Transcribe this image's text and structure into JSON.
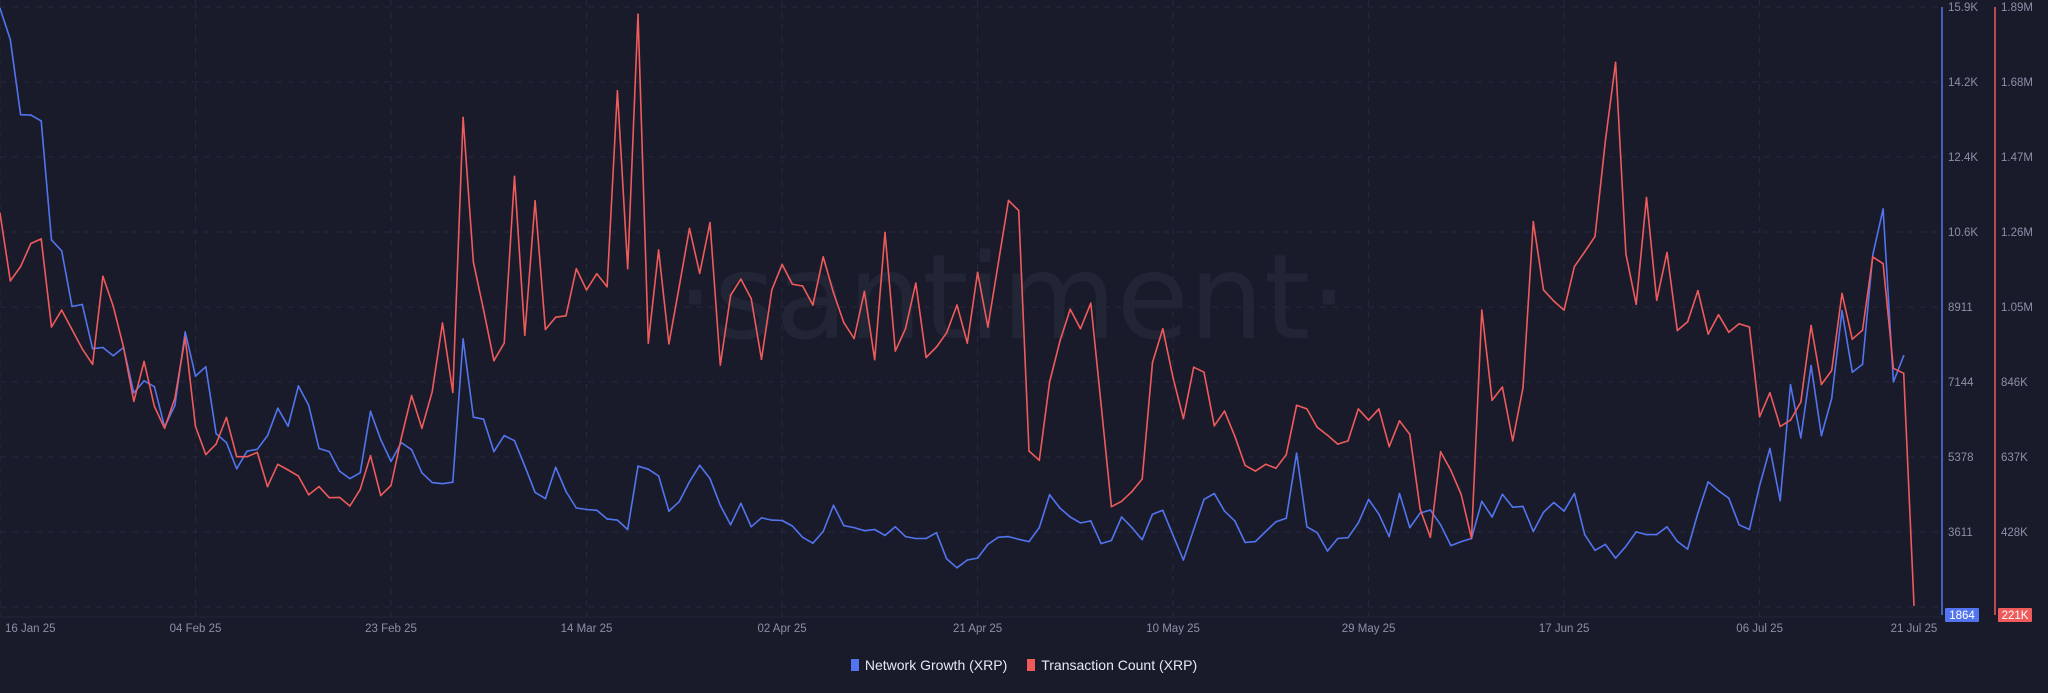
{
  "watermark": "·santiment·",
  "colors": {
    "background": "#191b2b",
    "network_growth": "#5274ee",
    "transaction_count": "#ef5b5b",
    "grid": "#262a3c",
    "tick_text": "#8b90a6"
  },
  "legend": [
    {
      "label": "Network Growth (XRP)",
      "color": "#5274ee"
    },
    {
      "label": "Transaction Count (XRP)",
      "color": "#ef5b5b"
    }
  ],
  "chart_data": {
    "type": "line",
    "legend_position": "bottom",
    "grid": true,
    "x_tick_labels": [
      "16 Jan 25",
      "04 Feb 25",
      "23 Feb 25",
      "14 Mar 25",
      "02 Apr 25",
      "21 Apr 25",
      "10 May 25",
      "29 May 25",
      "17 Jun 25",
      "06 Jul 25",
      "21 Jul 25"
    ],
    "x_tick_dates": [
      "2025-01-16",
      "2025-02-04",
      "2025-02-23",
      "2025-03-14",
      "2025-04-02",
      "2025-04-21",
      "2025-05-10",
      "2025-05-29",
      "2025-06-17",
      "2025-07-06",
      "2025-07-21"
    ],
    "y_left_axis": null,
    "y_axes": [
      {
        "series": "Network Growth (XRP)",
        "side": "right",
        "range": [
          1864,
          15900
        ],
        "tick_labels": [
          "15.9K",
          "14.2K",
          "12.4K",
          "10.6K",
          "8911",
          "7144",
          "5378",
          "3611"
        ],
        "min_badge": "1864"
      },
      {
        "series": "Transaction Count (XRP)",
        "side": "right",
        "range": [
          221000,
          1890000
        ],
        "tick_labels": [
          "1.89M",
          "1.68M",
          "1.47M",
          "1.26M",
          "1.05M",
          "846K",
          "637K",
          "428K"
        ],
        "min_badge": "221K"
      }
    ],
    "x": [
      "2025-01-16",
      "2025-01-17",
      "2025-01-18",
      "2025-01-19",
      "2025-01-20",
      "2025-01-21",
      "2025-01-22",
      "2025-01-23",
      "2025-01-24",
      "2025-01-25",
      "2025-01-26",
      "2025-01-27",
      "2025-01-28",
      "2025-01-29",
      "2025-01-30",
      "2025-01-31",
      "2025-02-01",
      "2025-02-02",
      "2025-02-03",
      "2025-02-04",
      "2025-02-05",
      "2025-02-06",
      "2025-02-07",
      "2025-02-08",
      "2025-02-09",
      "2025-02-10",
      "2025-02-11",
      "2025-02-12",
      "2025-02-13",
      "2025-02-14",
      "2025-02-15",
      "2025-02-16",
      "2025-02-17",
      "2025-02-18",
      "2025-02-19",
      "2025-02-20",
      "2025-02-21",
      "2025-02-22",
      "2025-02-23",
      "2025-02-24",
      "2025-02-25",
      "2025-02-26",
      "2025-02-27",
      "2025-02-28",
      "2025-03-01",
      "2025-03-02",
      "2025-03-03",
      "2025-03-04",
      "2025-03-05",
      "2025-03-06",
      "2025-03-07",
      "2025-03-08",
      "2025-03-09",
      "2025-03-10",
      "2025-03-11",
      "2025-03-12",
      "2025-03-13",
      "2025-03-14",
      "2025-03-15",
      "2025-03-16",
      "2025-03-17",
      "2025-03-18",
      "2025-03-19",
      "2025-03-20",
      "2025-03-21",
      "2025-03-22",
      "2025-03-23",
      "2025-03-24",
      "2025-03-25",
      "2025-03-26",
      "2025-03-27",
      "2025-03-28",
      "2025-03-29",
      "2025-03-30",
      "2025-03-31",
      "2025-04-01",
      "2025-04-02",
      "2025-04-03",
      "2025-04-04",
      "2025-04-05",
      "2025-04-06",
      "2025-04-07",
      "2025-04-08",
      "2025-04-09",
      "2025-04-10",
      "2025-04-11",
      "2025-04-12",
      "2025-04-13",
      "2025-04-14",
      "2025-04-15",
      "2025-04-16",
      "2025-04-17",
      "2025-04-18",
      "2025-04-19",
      "2025-04-20",
      "2025-04-21",
      "2025-04-22",
      "2025-04-23",
      "2025-04-24",
      "2025-04-25",
      "2025-04-26",
      "2025-04-27",
      "2025-04-28",
      "2025-04-29",
      "2025-04-30",
      "2025-05-01",
      "2025-05-02",
      "2025-05-03",
      "2025-05-04",
      "2025-05-05",
      "2025-05-06",
      "2025-05-07",
      "2025-05-08",
      "2025-05-09",
      "2025-05-10",
      "2025-05-11",
      "2025-05-12",
      "2025-05-13",
      "2025-05-14",
      "2025-05-15",
      "2025-05-16",
      "2025-05-17",
      "2025-05-18",
      "2025-05-19",
      "2025-05-20",
      "2025-05-21",
      "2025-05-22",
      "2025-05-23",
      "2025-05-24",
      "2025-05-25",
      "2025-05-26",
      "2025-05-27",
      "2025-05-28",
      "2025-05-29",
      "2025-05-30",
      "2025-05-31",
      "2025-06-01",
      "2025-06-02",
      "2025-06-03",
      "2025-06-04",
      "2025-06-05",
      "2025-06-06",
      "2025-06-07",
      "2025-06-08",
      "2025-06-09",
      "2025-06-10",
      "2025-06-11",
      "2025-06-12",
      "2025-06-13",
      "2025-06-14",
      "2025-06-15",
      "2025-06-16",
      "2025-06-17",
      "2025-06-18",
      "2025-06-19",
      "2025-06-20",
      "2025-06-21",
      "2025-06-22",
      "2025-06-23",
      "2025-06-24",
      "2025-06-25",
      "2025-06-26",
      "2025-06-27",
      "2025-06-28",
      "2025-06-29",
      "2025-06-30",
      "2025-07-01",
      "2025-07-02",
      "2025-07-03",
      "2025-07-04",
      "2025-07-05",
      "2025-07-06",
      "2025-07-07",
      "2025-07-08",
      "2025-07-09",
      "2025-07-10",
      "2025-07-11",
      "2025-07-12",
      "2025-07-13",
      "2025-07-14",
      "2025-07-15",
      "2025-07-16",
      "2025-07-17",
      "2025-07-18",
      "2025-07-19",
      "2025-07-20",
      "2025-07-21"
    ],
    "series": [
      {
        "name": "Network Growth (XRP)",
        "axis": 0,
        "values": [
          15871,
          15139,
          13381,
          13372,
          13235,
          10451,
          10195,
          8895,
          8941,
          7906,
          7934,
          7742,
          7934,
          6872,
          7156,
          7018,
          6075,
          6579,
          8300,
          7265,
          7485,
          5920,
          5709,
          5096,
          5508,
          5553,
          5874,
          6515,
          6094,
          7037,
          6579,
          5572,
          5499,
          5041,
          4867,
          5004,
          6442,
          5782,
          5270,
          5709,
          5544,
          5004,
          4775,
          4748,
          4784,
          8135,
          6304,
          6258,
          5499,
          5874,
          5755,
          5160,
          4546,
          4400,
          5132,
          4565,
          4180,
          4144,
          4126,
          3924,
          3896,
          3677,
          5160,
          5087,
          4931,
          4107,
          4327,
          4794,
          5178,
          4867,
          4244,
          3787,
          4290,
          3741,
          3951,
          3896,
          3887,
          3759,
          3494,
          3356,
          3631,
          4244,
          3768,
          3722,
          3649,
          3677,
          3539,
          3741,
          3512,
          3466,
          3466,
          3603,
          2990,
          2780,
          2963,
          3008,
          3329,
          3494,
          3512,
          3448,
          3393,
          3722,
          4491,
          4180,
          3970,
          3832,
          3878,
          3347,
          3420,
          3970,
          3722,
          3439,
          4034,
          4125,
          3539,
          2963,
          3677,
          4382,
          4519,
          4107,
          3878,
          3375,
          3393,
          3631,
          3860,
          3942,
          5462,
          3741,
          3603,
          3173,
          3466,
          3484,
          3832,
          4382,
          4034,
          3512,
          4519,
          3722,
          4061,
          4134,
          3787,
          3301,
          3393,
          3466,
          4336,
          3970,
          4501,
          4199,
          4217,
          3631,
          4080,
          4308,
          4107,
          4519,
          3558,
          3191,
          3329,
          3008,
          3283,
          3622,
          3558,
          3558,
          3741,
          3402,
          3219,
          4061,
          4794,
          4583,
          4409,
          3787,
          3677,
          4702,
          5572,
          4354,
          7064,
          5819,
          7513,
          5874,
          6744,
          8794,
          7357,
          7540,
          10104,
          11175,
          7128,
          7742,
          null
        ]
      },
      {
        "name": "Transaction Count (XRP)",
        "axis": 1,
        "values": [
          1317000,
          1128000,
          1168000,
          1232000,
          1245000,
          1000000,
          1047000,
          993000,
          939000,
          896000,
          1141000,
          1058000,
          944000,
          793000,
          904000,
          779000,
          718000,
          802000,
          971000,
          723000,
          645000,
          674000,
          748000,
          639000,
          639000,
          651000,
          556000,
          618000,
          602000,
          585000,
          533000,
          556000,
          525000,
          526000,
          502000,
          548000,
          642000,
          531000,
          559000,
          691000,
          809000,
          718000,
          820000,
          1011000,
          818000,
          1583000,
          1180000,
          1047000,
          906000,
          955000,
          1419000,
          977000,
          1351000,
          993000,
          1027000,
          1031000,
          1162000,
          1103000,
          1148000,
          1112000,
          1657000,
          1162000,
          1870000,
          955000,
          1214000,
          953000,
          1112000,
          1274000,
          1149000,
          1290000,
          894000,
          1088000,
          1133000,
          1079000,
          910000,
          1103000,
          1174000,
          1119000,
          1114000,
          1061000,
          1195000,
          1095000,
          1012000,
          968000,
          1099000,
          909000,
          1263000,
          933000,
          995000,
          1122000,
          915000,
          944000,
          984000,
          1061000,
          955000,
          1152000,
          1000000,
          1176000,
          1352000,
          1324000,
          655000,
          629000,
          847000,
          960000,
          1049000,
          995000,
          1066000,
          784000,
          500000,
          515000,
          542000,
          577000,
          901000,
          995000,
          858000,
          745000,
          888000,
          874000,
          725000,
          766000,
          696000,
          615000,
          599000,
          618000,
          607000,
          645000,
          782000,
          772000,
          721000,
          699000,
          674000,
          683000,
          772000,
          741000,
          772000,
          667000,
          739000,
          701000,
          494000,
          415000,
          653000,
          601000,
          534000,
          412000,
          1047000,
          796000,
          833000,
          683000,
          831000,
          1293000,
          1103000,
          1072000,
          1047000,
          1168000,
          1209000,
          1252000,
          1516000,
          1736000,
          1203000,
          1063000,
          1360000,
          1074000,
          1207000,
          990000,
          1014000,
          1101000,
          980000,
          1034000,
          985000,
          1009000,
          1000000,
          750000,
          817000,
          723000,
          741000,
          791000,
          1004000,
          840000,
          879000,
          1093000,
          966000,
          991000,
          1195000,
          1176000,
          885000,
          871000,
          226000
        ]
      }
    ]
  }
}
